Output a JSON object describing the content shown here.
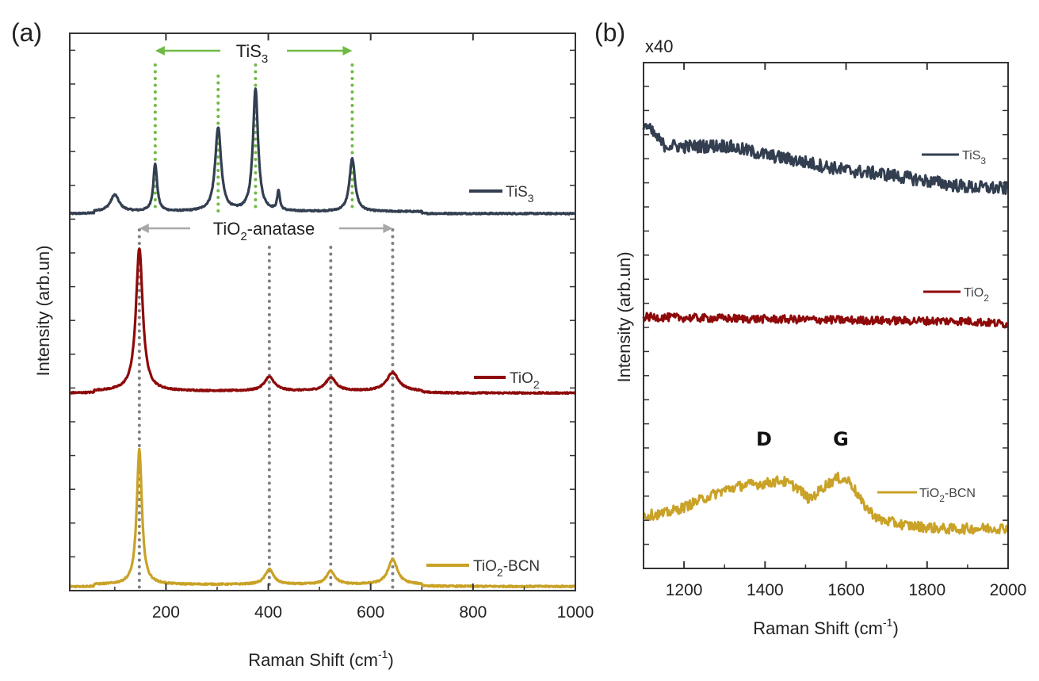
{
  "colors": {
    "tis3": "#333f50",
    "tio2": "#8e0a0a",
    "bcn": "#c9a227",
    "tis3_marker": "#6fba45",
    "anatase_marker": "#808080",
    "anatase_arrow": "#a8a8a8"
  },
  "chart_data": [
    {
      "type": "line",
      "panel_label": "(a)",
      "xlabel": {
        "main": "Raman Shift (cm",
        "sup": "-1",
        "end": ")"
      },
      "ylabel": "Intensity (arb.un)",
      "xlim": [
        12,
        1000
      ],
      "ylim": [
        0,
        100
      ],
      "xticks": [
        200,
        400,
        600,
        800,
        1000
      ],
      "minor_xticks": [
        100,
        300,
        500,
        700,
        900
      ],
      "grid": false,
      "legend_placement": "right, next to each curve",
      "series": [
        {
          "key": "tis3",
          "name": {
            "main": "TiS",
            "sub": "3",
            "end": ""
          },
          "baseline": 68,
          "peaks": [
            {
              "x": 100,
              "h": 3,
              "w": 10
            },
            {
              "x": 179,
              "h": 8.5,
              "w": 4.5
            },
            {
              "x": 302,
              "h": 15,
              "w": 7
            },
            {
              "x": 375,
              "h": 22,
              "w": 6
            },
            {
              "x": 420,
              "h": 3.5,
              "w": 3
            },
            {
              "x": 564,
              "h": 9.5,
              "w": 6.5
            }
          ]
        },
        {
          "key": "tio2",
          "name": {
            "main": "TiO",
            "sub": "2",
            "end": ""
          },
          "baseline": 35.8,
          "peaks": [
            {
              "x": 148,
              "h": 25.6,
              "w": 8
            },
            {
              "x": 402,
              "h": 2.5,
              "w": 12
            },
            {
              "x": 522,
              "h": 2.4,
              "w": 12
            },
            {
              "x": 643,
              "h": 3.3,
              "w": 14
            }
          ]
        },
        {
          "key": "bcn",
          "name": {
            "main": "TiO",
            "sub": "2",
            "end": "-BCN"
          },
          "baseline": 1.1,
          "peaks": [
            {
              "x": 148,
              "h": 24.2,
              "w": 6
            },
            {
              "x": 402,
              "h": 2.7,
              "w": 10
            },
            {
              "x": 522,
              "h": 2.4,
              "w": 10
            },
            {
              "x": 643,
              "h": 4.5,
              "w": 11
            }
          ]
        }
      ],
      "annotations": {
        "tis3_lines": [
          179,
          302,
          375,
          564
        ],
        "tis3_label": {
          "main": "TiS",
          "sub": "3"
        },
        "anatase_lines": [
          148,
          402,
          522,
          643
        ],
        "anatase_label": {
          "main": "TiO",
          "sub": "2",
          "end": "-anatase"
        }
      }
    },
    {
      "type": "line",
      "panel_label": "(b)",
      "scale_note": "x40",
      "xlabel": {
        "main": "Raman Shift (cm",
        "sup": "-1",
        "end": ")"
      },
      "ylabel": "Intensity (arb.un)",
      "xlim": [
        1100,
        2000
      ],
      "ylim": [
        0,
        100
      ],
      "xticks": [
        1200,
        1400,
        1600,
        1800,
        2000
      ],
      "minor_xticks": [
        1300,
        1500,
        1700,
        1900
      ],
      "grid": false,
      "legend_placement": "right, next to each curve",
      "series": [
        {
          "key": "tis3",
          "name": {
            "main": "TiS",
            "sub": "3",
            "end": ""
          },
          "x": [
            1100,
            1150,
            1200,
            1300,
            1400,
            1500,
            1600,
            1700,
            1800,
            1900,
            2000
          ],
          "y": [
            88,
            83.7,
            83.4,
            83.6,
            81.8,
            80.3,
            78.7,
            77.9,
            76.6,
            75.4,
            75.1
          ],
          "noise": 1.3
        },
        {
          "key": "tio2",
          "name": {
            "main": "TiO",
            "sub": "2",
            "end": ""
          },
          "x": [
            1100,
            1400,
            1700,
            1900,
            2000
          ],
          "y": [
            49.7,
            49.3,
            49.0,
            48.9,
            48.3
          ],
          "noise": 0.8
        },
        {
          "key": "bcn",
          "name": {
            "main": "TiO",
            "sub": "2",
            "end": "-BCN"
          },
          "x": [
            1100,
            1150,
            1200,
            1250,
            1300,
            1350,
            1400,
            1440,
            1480,
            1510,
            1550,
            1580,
            1610,
            1640,
            1680,
            1750,
            1850,
            2000
          ],
          "y": [
            10.5,
            10.8,
            12.1,
            13.9,
            15.5,
            16.5,
            16.8,
            17.4,
            16.0,
            13.6,
            16.5,
            17.9,
            17.2,
            12.9,
            9.7,
            8.5,
            7.8,
            8.0
          ],
          "noise": 1.0
        }
      ],
      "annotations": {
        "D": "D",
        "G": "G"
      }
    }
  ]
}
